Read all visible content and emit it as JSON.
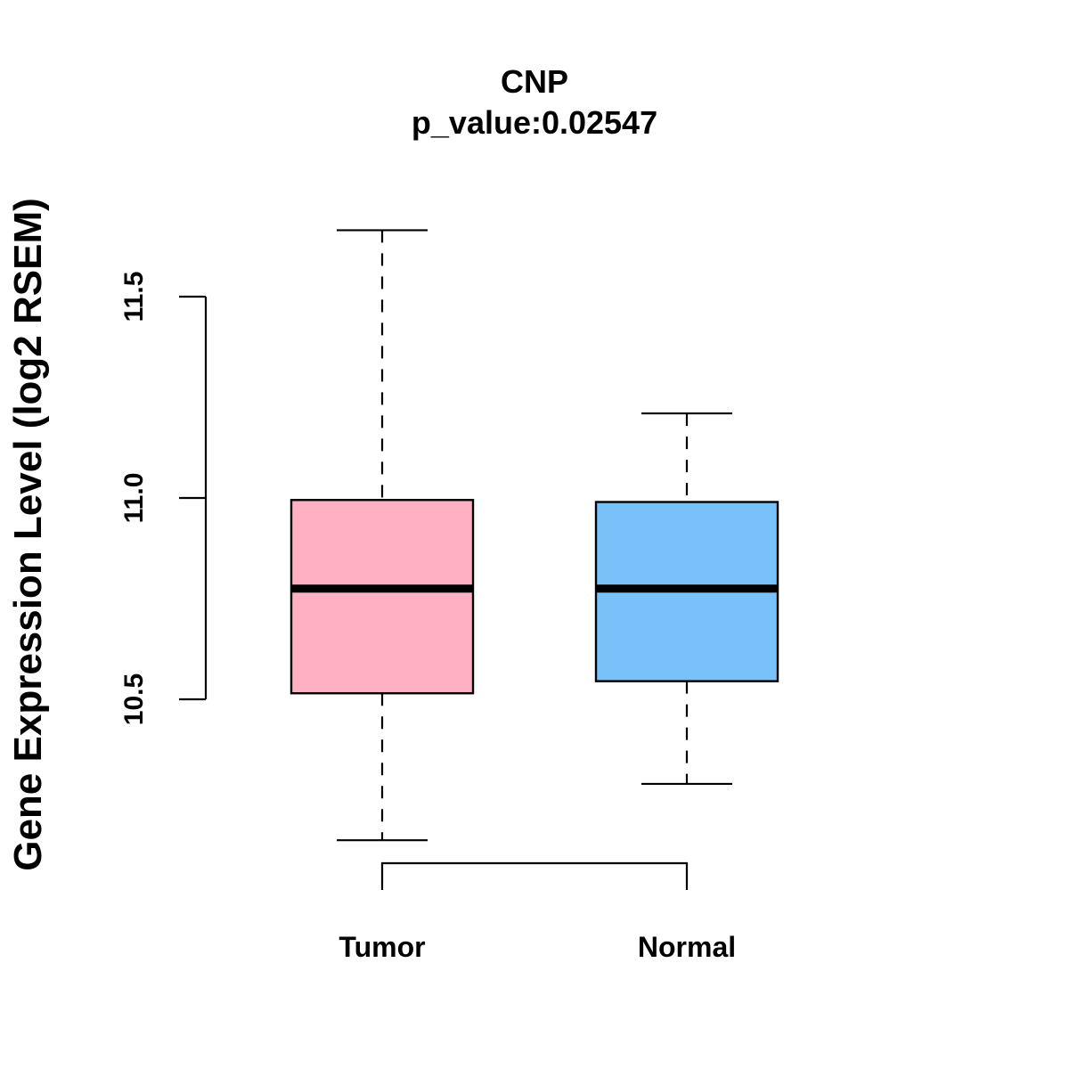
{
  "chart_data": {
    "type": "box",
    "title": "CNP",
    "subtitle": "p_value:0.02547",
    "xlabel": "",
    "ylabel": "Gene Expression Level (log2 RSEM)",
    "ylim": [
      10.5,
      11.5
    ],
    "yticks": [
      "10.5",
      "11.0",
      "11.5"
    ],
    "categories": [
      "Tumor",
      "Normal"
    ],
    "series": [
      {
        "name": "Tumor",
        "min": 10.15,
        "q1": 10.515,
        "median": 10.775,
        "q3": 10.995,
        "max": 11.665,
        "color": "#ffb0c2"
      },
      {
        "name": "Normal",
        "min": 10.29,
        "q1": 10.545,
        "median": 10.775,
        "q3": 10.99,
        "max": 11.21,
        "color": "#78c1f9"
      }
    ],
    "comparison_bracket": [
      "Tumor",
      "Normal"
    ],
    "grid": false,
    "legend": "none"
  }
}
